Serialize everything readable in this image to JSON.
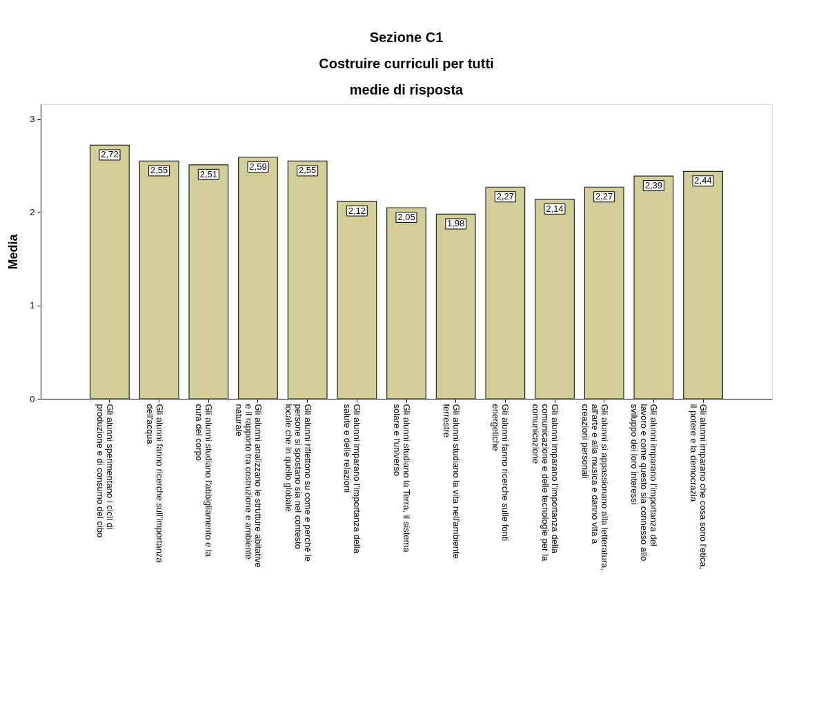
{
  "chart_data": {
    "type": "bar",
    "title": "Sezione  C1\nCostruire curriculi per tutti\nmedie di risposta",
    "ylabel": "Media",
    "categories": [
      "Gli alunni sperimentano i cicli di\nproduzione e di consumo del cibo",
      "Gli alunni fanno ricerche sull'importanza\ndell'acqua",
      "Gli alunni studiano l'abbigliamento e la\ncura del corpo",
      "Gli alunni analizzano le strutture abitative\ne il rapporto tra costruzione e ambiente\nnaturale",
      "Gli alunni riflettono su come e perché le\npersone si spostano sia nel contesto\nlocale che in quello globale",
      "Gli alunni imparano l'importanza della\nsalute e delle relazioni",
      "Gli alunni studiano la Terra, il sistema\nsolare e l'universo",
      "Gli alunni studiano la vita nell'ambiente\nterrestre",
      "Gli alunni fanno ricerche sulle fonti\nenergetiche",
      "Gli alunni imparano l'importanza della\ncomunicazione e delle tecnologie per la\ncomunicazione",
      "Gli alunni si appassionano alla letteratura,\nall'arte e alla musica e danno vita a\ncreazioni personali",
      "Gli alunni imparano l'importanza del\nlavoro e come questo sia connesso allo\nsviluppo dei loro interessi",
      "Gli alunni imparano che cosa sono l'etica,\nil potere e la democrazia"
    ],
    "values": [
      2.72,
      2.55,
      2.51,
      2.59,
      2.55,
      2.12,
      2.05,
      1.98,
      2.27,
      2.14,
      2.27,
      2.39,
      2.44
    ],
    "value_labels": [
      "2,72",
      "2,55",
      "2,51",
      "2,59",
      "2,55",
      "2,12",
      "2,05",
      "1,98",
      "2,27",
      "2,14",
      "2,27",
      "2,39",
      "2,44"
    ],
    "color": "#d3ce98",
    "ylim": [
      0,
      3.16
    ],
    "yticks": [
      0,
      1,
      2,
      3
    ],
    "grid": false
  }
}
